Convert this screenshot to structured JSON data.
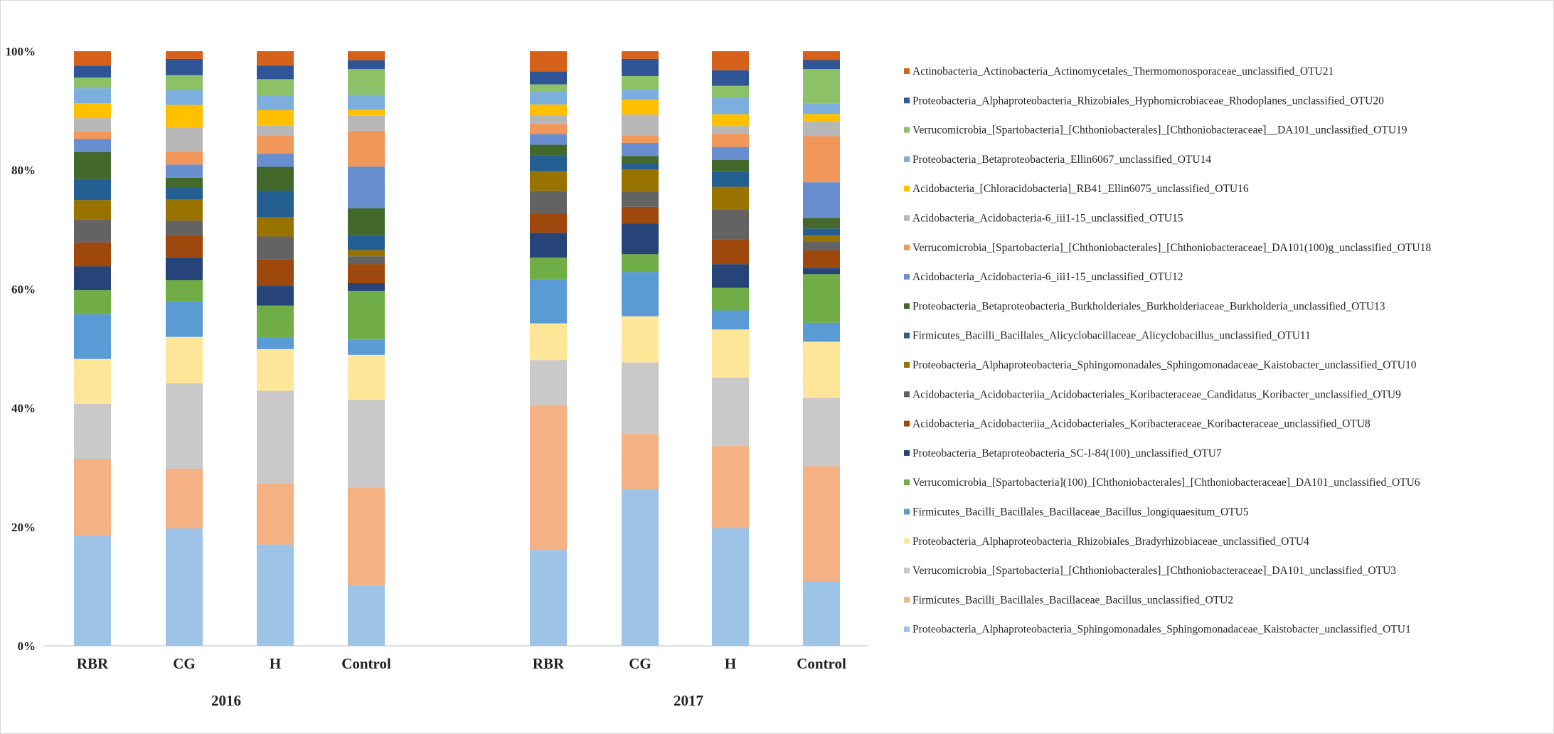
{
  "chart_data": {
    "type": "bar",
    "stacked": true,
    "normalized": true,
    "y_ticks": [
      "0%",
      "20%",
      "40%",
      "60%",
      "80%",
      "100%"
    ],
    "ylim": [
      0,
      100
    ],
    "grid": false,
    "legend_position": "right",
    "groups": [
      {
        "label": "2016",
        "categories": [
          "RBR",
          "CG",
          "H",
          "Control"
        ]
      },
      {
        "label": "2017",
        "categories": [
          "RBR",
          "CG",
          "H",
          "Control"
        ]
      }
    ],
    "categories": [
      "RBR",
      "CG",
      "H",
      "Control",
      "RBR",
      "CG",
      "H",
      "Control"
    ],
    "series": [
      {
        "name": "Proteobacteria_Alphaproteobacteria_Sphingomonadales_Sphingomonadaceae_Kaistobacter_unclassified_OTU1",
        "color": "#9dc3e6",
        "values": [
          18.5,
          19.7,
          17.0,
          10.0,
          16.2,
          26.5,
          19.8,
          10.8
        ]
      },
      {
        "name": "Firmicutes_Bacilli_Bacillales_Bacillaceae_Bacillus_unclassified_OTU2",
        "color": "#f4b183",
        "values": [
          12.8,
          10.0,
          10.3,
          16.5,
          24.5,
          9.3,
          13.8,
          19.5
        ]
      },
      {
        "name": "Verrucomicrobia_[Spartobacteria]_[Chthoniobacterales]_[Chthoniobacteraceae]_DA101_unclassified_OTU3",
        "color": "#c9c9c9",
        "values": [
          9.2,
          14.3,
          15.5,
          14.7,
          7.6,
          12.1,
          11.5,
          11.5
        ]
      },
      {
        "name": "Proteobacteria_Alphaproteobacteria_Rhizobiales_Bradyrhizobiaceae_unclassified_OTU4",
        "color": "#ffe699",
        "values": [
          7.5,
          7.8,
          7.0,
          7.5,
          6.2,
          7.8,
          8.1,
          9.5
        ]
      },
      {
        "name": "Firmicutes_Bacilli_Bacillales_Bacillaceae_Bacillus_longiquaesitum_OTU5",
        "color": "#5b9bd5",
        "values": [
          7.5,
          6.0,
          2.0,
          2.5,
          7.5,
          7.5,
          3.2,
          3.2
        ]
      },
      {
        "name": "Verrucomicrobia_[Spartobacteria](100)_[Chthoniobacterales]_[Chthoniobacteraceae]_DA101_unclassified_OTU6",
        "color": "#70ad47",
        "values": [
          4.0,
          3.5,
          5.3,
          8.2,
          3.6,
          3.0,
          3.8,
          8.2
        ]
      },
      {
        "name": "Proteobacteria_Betaproteobacteria_SC-I-84(100)_unclassified_OTU7",
        "color": "#264478",
        "values": [
          4.0,
          3.8,
          3.3,
          1.3,
          4.2,
          5.2,
          4.0,
          1.0
        ]
      },
      {
        "name": "Acidobacteria_Acidobacteriia_Acidobacteriales_Koribacteraceae_Koribacteraceae_unclassified_OTU8",
        "color": "#9e480e",
        "values": [
          4.0,
          3.8,
          4.5,
          3.2,
          3.3,
          2.8,
          4.2,
          3.0
        ]
      },
      {
        "name": "Acidobacteria_Acidobacteriia_Acidobacteriales_Koribacteraceae_Candidatus_Koribacter_unclassified_OTU9",
        "color": "#636363",
        "values": [
          3.8,
          2.4,
          3.8,
          1.3,
          3.8,
          2.5,
          5.0,
          1.5
        ]
      },
      {
        "name": "Proteobacteria_Alphaproteobacteria_Sphingomonadales_Sphingomonadaceae_Kaistobacter_unclassified_OTU10",
        "color": "#997300",
        "values": [
          3.3,
          3.5,
          3.2,
          1.0,
          3.3,
          3.8,
          3.8,
          1.0
        ]
      },
      {
        "name": "Firmicutes_Bacilli_Bacillales_Alicyclobacillaceae_Alicyclobacillus_unclassified_OTU11",
        "color": "#255e91",
        "values": [
          3.5,
          2.0,
          4.5,
          2.5,
          2.7,
          1.0,
          2.5,
          1.2
        ]
      },
      {
        "name": "Proteobacteria_Betaproteobacteria_Burkholderiales_Burkholderiaceae_Burkholderia_unclassified_OTU13",
        "color": "#43682b",
        "values": [
          4.5,
          1.7,
          4.0,
          4.5,
          1.8,
          1.3,
          2.0,
          1.8
        ]
      },
      {
        "name": "Acidobacteria_Acidobacteria-6_iii1-15_unclassified_OTU12",
        "color": "#698ed0",
        "values": [
          2.2,
          2.2,
          2.2,
          7.0,
          1.8,
          2.2,
          2.2,
          6.0
        ]
      },
      {
        "name": "Verrucomicrobia_[Spartobacteria]_[Chthoniobacterales]_[Chthoniobacteraceae]_DA101(100)g_unclassified_OTU18",
        "color": "#f1975a",
        "values": [
          1.3,
          2.2,
          3.0,
          6.0,
          1.7,
          1.3,
          2.2,
          7.8
        ]
      },
      {
        "name": "Acidobacteria_Acidobacteria-6_iii1-15_unclassified_OTU15",
        "color": "#b7b7b7",
        "values": [
          2.2,
          4.0,
          1.7,
          2.5,
          1.5,
          3.5,
          1.3,
          2.5
        ]
      },
      {
        "name": "Acidobacteria_[Chloracidobacteria]_RB41_Ellin6075_unclassified_OTU16",
        "color": "#ffc000",
        "values": [
          2.5,
          3.8,
          2.6,
          1.0,
          1.8,
          2.5,
          2.0,
          1.2
        ]
      },
      {
        "name": "Proteobacteria_Betaproteobacteria_Ellin6067_unclassified_OTU14",
        "color": "#7cafdd",
        "values": [
          2.5,
          2.5,
          2.5,
          2.5,
          2.2,
          1.8,
          2.8,
          1.8
        ]
      },
      {
        "name": "Verrucomicrobia_[Spartobacteria]_[Chthoniobacterales]_[Chthoniobacteraceae]__DA101_unclassified_OTU19",
        "color": "#8cc168",
        "values": [
          1.8,
          2.5,
          2.7,
          4.3,
          1.2,
          2.2,
          2.0,
          5.8
        ]
      },
      {
        "name": "Proteobacteria_Alphaproteobacteria_Rhizobiales_Hyphomicrobiaceae_Rhodoplanes_unclassified_OTU20",
        "color": "#2f5597",
        "values": [
          2.0,
          2.7,
          2.3,
          1.5,
          2.2,
          2.9,
          2.6,
          1.5
        ]
      },
      {
        "name": "Actinobacteria_Actinobacteria_Actinomycetales_Thermomonosporaceae_unclassified_OTU21",
        "color": "#d6611a",
        "values": [
          2.4,
          1.3,
          2.4,
          1.5,
          3.4,
          1.3,
          3.2,
          1.5
        ]
      }
    ]
  }
}
